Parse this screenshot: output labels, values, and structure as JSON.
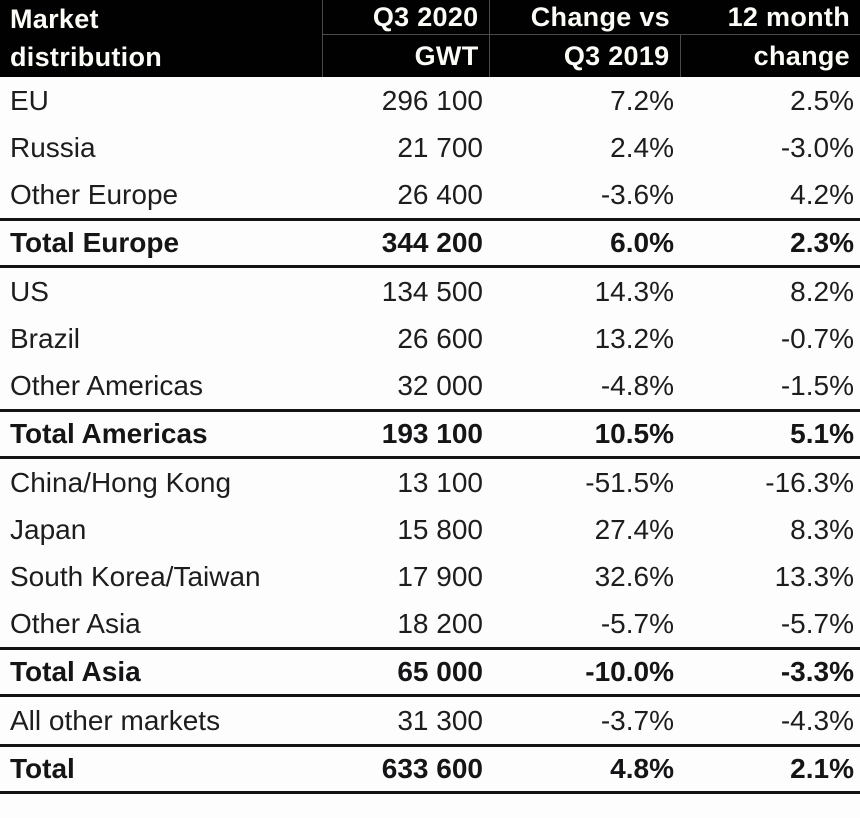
{
  "table": {
    "header": {
      "market": {
        "line1": "Market",
        "line2": "distribution"
      },
      "q3_2020_gwt": {
        "line1": "Q3 2020",
        "line2": "GWT"
      },
      "change_vs_q3_2019": {
        "line1": "Change vs",
        "line2": "Q3 2019"
      },
      "twelve_month_change": {
        "line1": "12 month",
        "line2": "change"
      }
    },
    "rows": [
      {
        "label": "EU",
        "gwt": "296 100",
        "change_vs": "7.2%",
        "change_12m": "2.5%",
        "total": false
      },
      {
        "label": "Russia",
        "gwt": "21 700",
        "change_vs": "2.4%",
        "change_12m": "-3.0%",
        "total": false
      },
      {
        "label": "Other Europe",
        "gwt": "26 400",
        "change_vs": "-3.6%",
        "change_12m": "4.2%",
        "total": false
      },
      {
        "label": "Total Europe",
        "gwt": "344 200",
        "change_vs": "6.0%",
        "change_12m": "2.3%",
        "total": true
      },
      {
        "label": "US",
        "gwt": "134 500",
        "change_vs": "14.3%",
        "change_12m": "8.2%",
        "total": false
      },
      {
        "label": "Brazil",
        "gwt": "26 600",
        "change_vs": "13.2%",
        "change_12m": "-0.7%",
        "total": false
      },
      {
        "label": "Other Americas",
        "gwt": "32 000",
        "change_vs": "-4.8%",
        "change_12m": "-1.5%",
        "total": false
      },
      {
        "label": "Total Americas",
        "gwt": "193 100",
        "change_vs": "10.5%",
        "change_12m": "5.1%",
        "total": true
      },
      {
        "label": "China/Hong Kong",
        "gwt": "13 100",
        "change_vs": "-51.5%",
        "change_12m": "-16.3%",
        "total": false
      },
      {
        "label": "Japan",
        "gwt": "15 800",
        "change_vs": "27.4%",
        "change_12m": "8.3%",
        "total": false
      },
      {
        "label": "South Korea/Taiwan",
        "gwt": "17 900",
        "change_vs": "32.6%",
        "change_12m": "13.3%",
        "total": false
      },
      {
        "label": "Other Asia",
        "gwt": "18 200",
        "change_vs": "-5.7%",
        "change_12m": "-5.7%",
        "total": false
      },
      {
        "label": "Total Asia",
        "gwt": "65 000",
        "change_vs": "-10.0%",
        "change_12m": "-3.3%",
        "total": true
      },
      {
        "label": "All other markets",
        "gwt": "31 300",
        "change_vs": "-3.7%",
        "change_12m": "-4.3%",
        "total": false
      },
      {
        "label": "Total",
        "gwt": "633 600",
        "change_vs": "4.8%",
        "change_12m": "2.1%",
        "total": true
      }
    ]
  },
  "chart_data": {
    "type": "table",
    "title": "Market distribution",
    "columns": [
      "Market distribution",
      "Q3 2020 GWT",
      "Change vs Q3 2019",
      "12 month change"
    ],
    "rows": [
      {
        "market": "EU",
        "q3_2020_gwt": 296100,
        "change_vs_q3_2019_pct": 7.2,
        "twelve_month_change_pct": 2.5,
        "is_total": false
      },
      {
        "market": "Russia",
        "q3_2020_gwt": 21700,
        "change_vs_q3_2019_pct": 2.4,
        "twelve_month_change_pct": -3.0,
        "is_total": false
      },
      {
        "market": "Other Europe",
        "q3_2020_gwt": 26400,
        "change_vs_q3_2019_pct": -3.6,
        "twelve_month_change_pct": 4.2,
        "is_total": false
      },
      {
        "market": "Total Europe",
        "q3_2020_gwt": 344200,
        "change_vs_q3_2019_pct": 6.0,
        "twelve_month_change_pct": 2.3,
        "is_total": true
      },
      {
        "market": "US",
        "q3_2020_gwt": 134500,
        "change_vs_q3_2019_pct": 14.3,
        "twelve_month_change_pct": 8.2,
        "is_total": false
      },
      {
        "market": "Brazil",
        "q3_2020_gwt": 26600,
        "change_vs_q3_2019_pct": 13.2,
        "twelve_month_change_pct": -0.7,
        "is_total": false
      },
      {
        "market": "Other Americas",
        "q3_2020_gwt": 32000,
        "change_vs_q3_2019_pct": -4.8,
        "twelve_month_change_pct": -1.5,
        "is_total": false
      },
      {
        "market": "Total Americas",
        "q3_2020_gwt": 193100,
        "change_vs_q3_2019_pct": 10.5,
        "twelve_month_change_pct": 5.1,
        "is_total": true
      },
      {
        "market": "China/Hong Kong",
        "q3_2020_gwt": 13100,
        "change_vs_q3_2019_pct": -51.5,
        "twelve_month_change_pct": -16.3,
        "is_total": false
      },
      {
        "market": "Japan",
        "q3_2020_gwt": 15800,
        "change_vs_q3_2019_pct": 27.4,
        "twelve_month_change_pct": 8.3,
        "is_total": false
      },
      {
        "market": "South Korea/Taiwan",
        "q3_2020_gwt": 17900,
        "change_vs_q3_2019_pct": 32.6,
        "twelve_month_change_pct": 13.3,
        "is_total": false
      },
      {
        "market": "Other Asia",
        "q3_2020_gwt": 18200,
        "change_vs_q3_2019_pct": -5.7,
        "twelve_month_change_pct": -5.7,
        "is_total": false
      },
      {
        "market": "Total Asia",
        "q3_2020_gwt": 65000,
        "change_vs_q3_2019_pct": -10.0,
        "twelve_month_change_pct": -3.3,
        "is_total": true
      },
      {
        "market": "All other markets",
        "q3_2020_gwt": 31300,
        "change_vs_q3_2019_pct": -3.7,
        "twelve_month_change_pct": -4.3,
        "is_total": false
      },
      {
        "market": "Total",
        "q3_2020_gwt": 633600,
        "change_vs_q3_2019_pct": 4.8,
        "twelve_month_change_pct": 2.1,
        "is_total": true
      }
    ]
  },
  "colors": {
    "header_bg": "#010101",
    "header_text": "#fcfcf7",
    "header_grid_line": "#4a4a4a",
    "body_text": "#1d1d1f",
    "total_rule": "#141414",
    "page_bg": "#fdfdfd"
  }
}
